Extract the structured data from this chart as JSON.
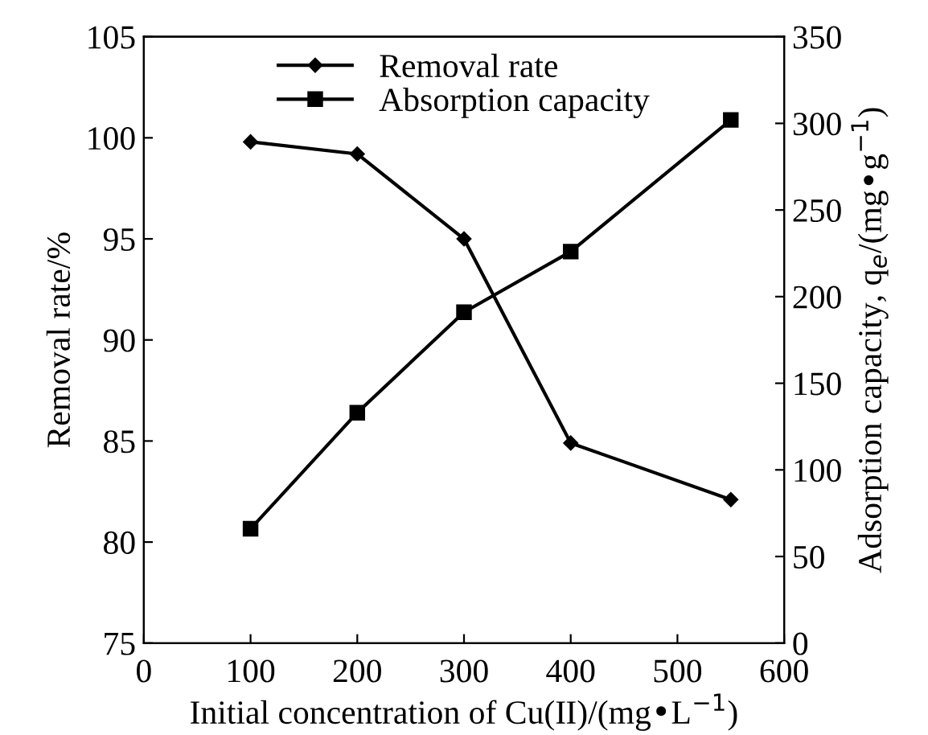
{
  "chart_data": {
    "type": "line",
    "xlabel": "Initial concentration of Cu(II)/(mg•L$^{−1}$)",
    "ylabel": "Removal rate/%",
    "y2label": "Adsorption capacity, q$_{e}$/(mg•g$^{−1}$)",
    "x": [
      100,
      200,
      300,
      400,
      550
    ],
    "series": [
      {
        "name": "Removal rate",
        "color": "#000000",
        "marker": "diamond",
        "values": [
          99.8,
          99.2,
          95.0,
          84.9,
          82.1
        ]
      },
      {
        "name": "Absorption capacity",
        "color": "#000000",
        "marker": "square",
        "axis": "y2",
        "values": [
          66,
          133,
          191,
          226,
          302
        ]
      }
    ],
    "xlim": [
      0,
      600
    ],
    "xticks": [
      0,
      100,
      200,
      300,
      400,
      500,
      600
    ],
    "ylim": [
      75,
      105
    ],
    "yticks": [
      75,
      80,
      85,
      90,
      95,
      100,
      105
    ],
    "y2lim": [
      0,
      350
    ],
    "y2ticks": [
      0,
      50,
      100,
      150,
      200,
      250,
      300,
      350
    ],
    "legend": "top",
    "grid": false,
    "line_style": "solid"
  }
}
